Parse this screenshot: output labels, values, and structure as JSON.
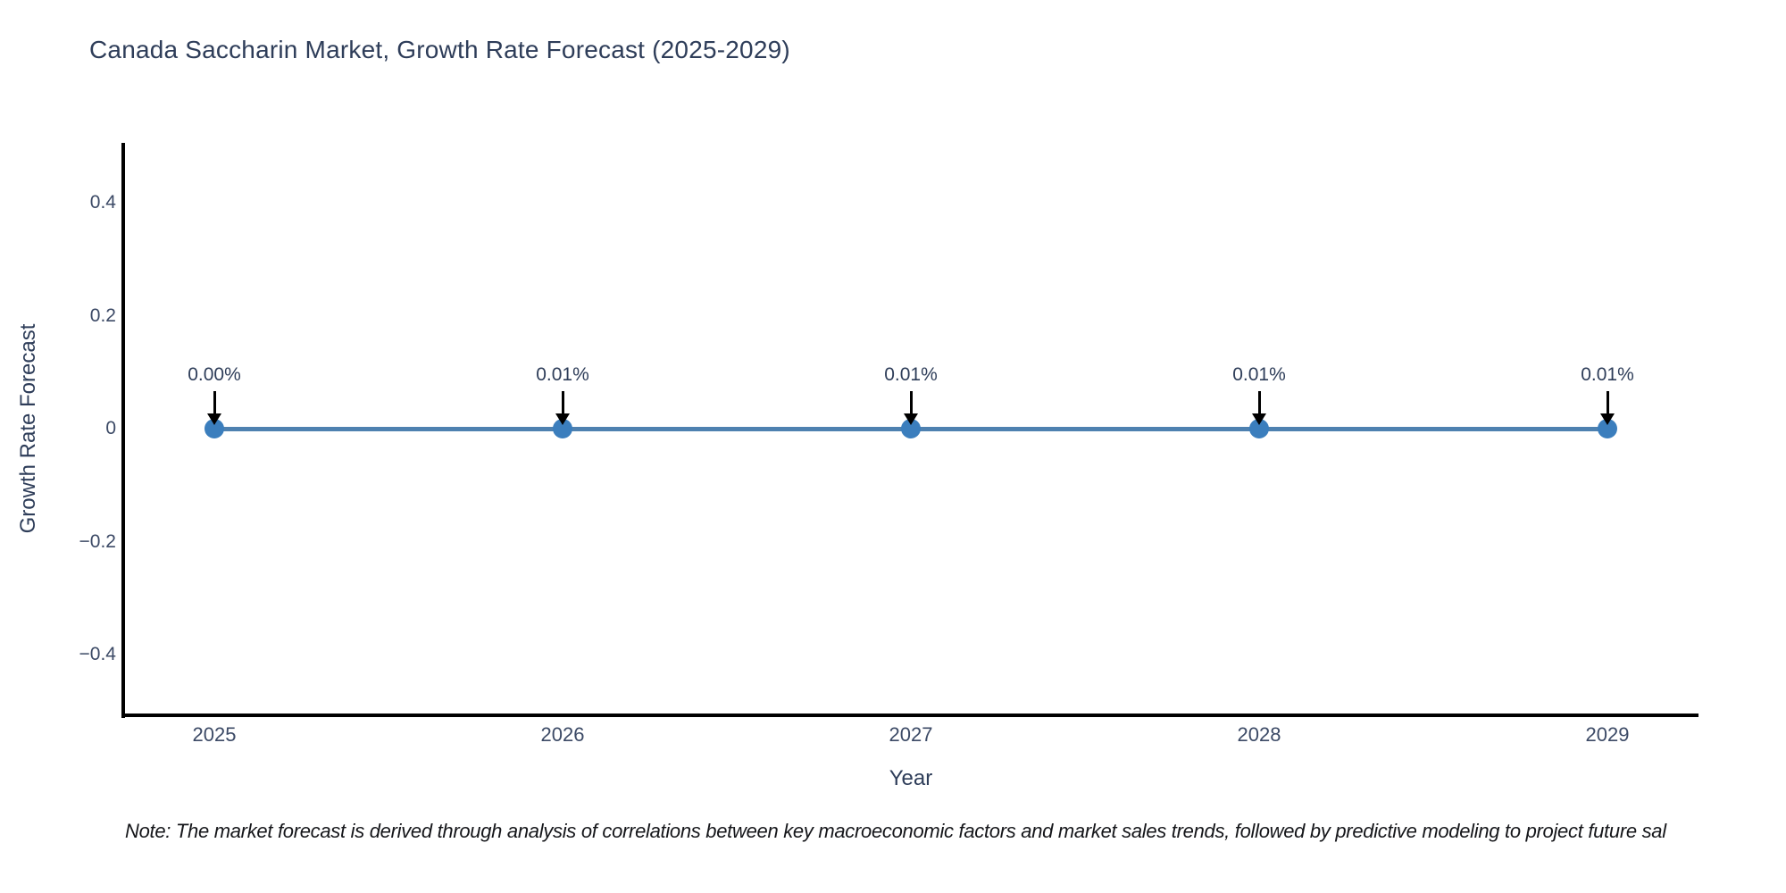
{
  "title": "Canada Saccharin Market, Growth Rate Forecast (2025-2029)",
  "note": "Note: The market forecast is derived through analysis of correlations between key macroeconomic factors and market sales trends, followed by predictive modeling to project future sal",
  "chart_data": {
    "type": "line",
    "title": "Canada Saccharin Market, Growth Rate Forecast (2025-2029)",
    "xlabel": "Year",
    "ylabel": "Growth Rate Forecast",
    "categories": [
      "2025",
      "2026",
      "2027",
      "2028",
      "2029"
    ],
    "values": [
      0.0,
      0.01,
      0.01,
      0.01,
      0.01
    ],
    "unit": "%",
    "point_labels": [
      "0.00%",
      "0.01%",
      "0.01%",
      "0.01%",
      "0.01%"
    ],
    "ytick_labels": [
      "0.4",
      "0.2",
      "0",
      "−0.2",
      "−0.4"
    ],
    "yticks": [
      0.4,
      0.2,
      0,
      -0.2,
      -0.4
    ],
    "ylim": [
      -0.51,
      0.51
    ],
    "grid": false,
    "legend": "none",
    "annotation_arrows": "down-arrow to each point",
    "colors": {
      "line": "#4e81b0",
      "marker": "#3b7ebd",
      "arrow": "#000000",
      "text": "#2e3d59",
      "tick_text": "#3c4a66",
      "axis": "#000000",
      "note_text": "#15161a",
      "background": "#ffffff"
    }
  }
}
